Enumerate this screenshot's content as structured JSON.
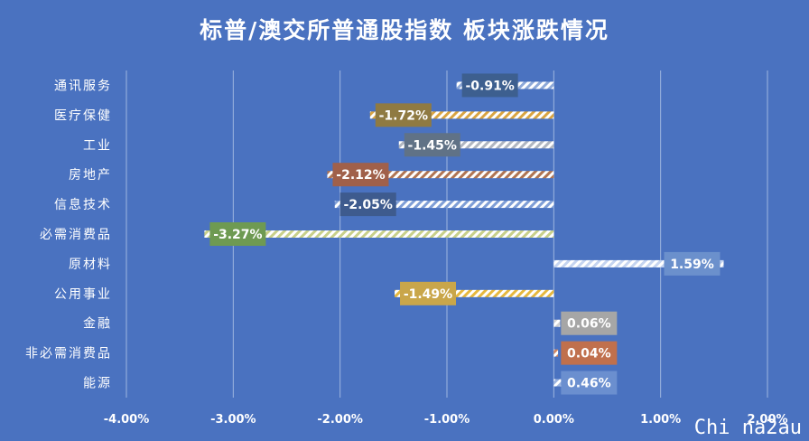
{
  "chart_data": {
    "type": "bar",
    "orientation": "horizontal",
    "title": "标普/澳交所普通股指数 板块涨跌情况",
    "categories": [
      "通讯服务",
      "医疗保健",
      "工业",
      "房地产",
      "信息技术",
      "必需消费品",
      "原材料",
      "公用事业",
      "金融",
      "非必需消费品",
      "能源"
    ],
    "values": [
      -0.91,
      -1.72,
      -1.45,
      -2.12,
      -2.05,
      -3.27,
      1.59,
      -1.49,
      0.06,
      0.04,
      0.46
    ],
    "data_labels": [
      "-0.91%",
      "-1.72%",
      "-1.45%",
      "-2.12%",
      "-2.05%",
      "-3.27%",
      "1.59%",
      "-1.49%",
      "0.06%",
      "0.04%",
      "0.46%"
    ],
    "label_colors": [
      "#3d5f8f",
      "#8f7a42",
      "#607286",
      "#a0604a",
      "#3e5b8e",
      "#6e9a52",
      "#6b90cc",
      "#c9a64a",
      "#a6a6a6",
      "#c0704d",
      "#6b8fcf"
    ],
    "bar_colors": [
      "#8ea9d8",
      "#d9a441",
      "#b0b6c0",
      "#b07452",
      "#7f9ed6",
      "#c8d08a",
      "#c5d4f0",
      "#e6b83e",
      "#d0d0d0",
      "#d0855f",
      "#9bb3df"
    ],
    "xlim": [
      -4.0,
      2.0
    ],
    "xticks": [
      "-4.00%",
      "-3.00%",
      "-2.00%",
      "-1.00%",
      "0.00%",
      "1.00%",
      "2.00%"
    ],
    "xtick_values": [
      -4,
      -3,
      -2,
      -1,
      0,
      1,
      2
    ],
    "grid": true,
    "grid_color": "#9fb5e0",
    "background": "#4a72c0",
    "text_color": "#ffffff"
  },
  "watermark": "Chi na2au"
}
